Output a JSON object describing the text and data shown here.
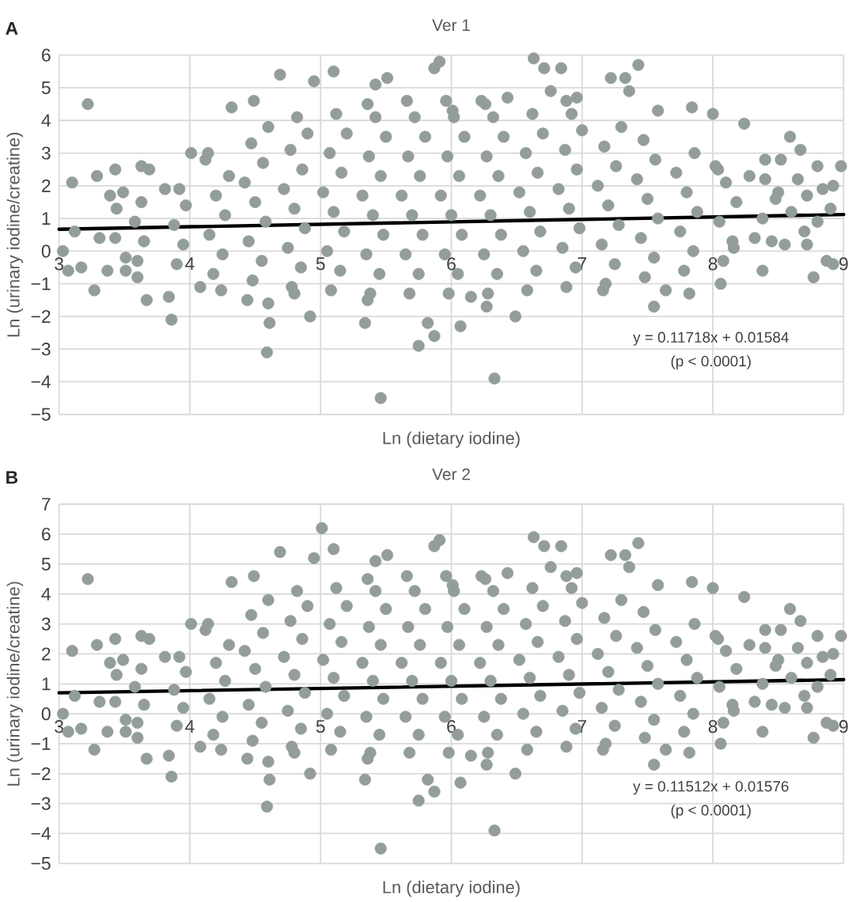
{
  "chart_data": [
    {
      "type": "scatter",
      "title": "Ver 1",
      "xlabel": "Ln (dietary iodine)",
      "ylabel": "Ln (urinary iodine/creatine)",
      "annotations": [
        "A",
        "y = 0.11718x + 0.01584",
        "(p < 0.0001)"
      ],
      "xlim": [
        3,
        9
      ],
      "ylim": [
        -5,
        6
      ],
      "xticks": [
        3,
        4,
        5,
        6,
        7,
        8,
        9
      ],
      "yticks": [
        {
          "value": -5,
          "label": "−5"
        },
        {
          "value": -4,
          "label": "−4"
        },
        {
          "value": -3,
          "label": "−3"
        },
        {
          "value": -2,
          "label": "−2"
        },
        {
          "value": -1,
          "label": "−1"
        },
        0,
        1,
        2,
        3,
        4,
        5,
        6
      ],
      "grid": true,
      "series": [
        {
          "marker": "circle",
          "color": "#939d9a",
          "x": [
            3.22,
            3.1,
            3.29,
            3.43,
            3.39,
            3.49,
            3.44,
            3.63,
            3.69,
            3.12,
            3.03,
            3.07,
            3.17,
            3.27,
            3.37,
            3.51,
            3.6,
            3.67,
            3.31,
            3.43,
            3.51,
            3.84,
            3.86,
            4.01,
            4.14,
            3.81,
            3.63,
            4.08,
            4.24,
            4.32,
            4.49,
            4.69,
            5.1,
            4.95,
            4.6,
            4.61,
            4.59,
            4.92,
            5.46,
            5.34,
            5.42,
            5.51,
            5.36,
            4.8,
            4.44,
            5.91,
            5.87,
            6.63,
            6.71,
            6.84,
            7.22,
            7.33,
            7.43,
            7.36,
            5.82,
            5.87,
            5.75,
            6.07,
            6.49,
            6.33,
            6.27,
            6.15,
            7.16,
            7.55,
            7.64,
            7.82,
            8.06,
            8.38,
            8.77,
            8.87,
            8.92,
            8.98,
            8.8,
            8.67,
            8.59,
            8.52,
            8.24,
            8.0,
            7.84,
            7.58,
            8.84,
            8.92,
            8.72,
            8.8,
            8.72,
            8.32,
            8.16,
            8.4,
            8.04,
            8.28,
            6.88,
            6.96,
            6.43,
            6.23,
            6.01,
            6.76,
            8.6,
            8.7,
            8.55,
            8.9,
            8.5,
            8.65,
            3.6,
            3.65,
            3.58,
            3.9,
            3.95,
            3.88,
            3.97,
            3.92,
            4.18,
            4.25,
            4.15,
            4.27,
            4.2,
            4.3,
            4.12,
            4.48,
            4.55,
            4.45,
            4.58,
            4.5,
            4.42,
            4.56,
            4.47,
            4.6,
            4.78,
            4.85,
            4.75,
            4.88,
            4.8,
            4.72,
            4.86,
            4.77,
            4.9,
            4.82,
            5.08,
            5.15,
            5.05,
            5.18,
            5.1,
            5.02,
            5.16,
            5.07,
            5.2,
            5.12,
            5.38,
            5.45,
            5.35,
            5.48,
            5.4,
            5.32,
            5.46,
            5.37,
            5.5,
            5.42,
            5.36,
            5.68,
            5.75,
            5.65,
            5.78,
            5.7,
            5.62,
            5.76,
            5.67,
            5.8,
            5.72,
            5.66,
            5.98,
            6.05,
            5.95,
            6.08,
            6.0,
            5.92,
            6.06,
            5.97,
            6.1,
            6.02,
            5.96,
            6.28,
            6.35,
            6.25,
            6.38,
            6.3,
            6.22,
            6.36,
            6.27,
            6.4,
            6.32,
            6.26,
            6.58,
            6.65,
            6.55,
            6.68,
            6.6,
            6.52,
            6.66,
            6.57,
            6.7,
            6.62,
            6.88,
            6.95,
            6.85,
            6.98,
            6.9,
            6.82,
            6.96,
            6.87,
            7.0,
            6.92,
            7.18,
            7.25,
            7.15,
            7.28,
            7.2,
            7.12,
            7.26,
            7.17,
            7.3,
            7.48,
            7.55,
            7.45,
            7.58,
            7.5,
            7.42,
            7.56,
            7.47,
            7.78,
            7.85,
            7.75,
            7.88,
            7.8,
            7.72,
            7.86,
            8.08,
            8.15,
            8.05,
            8.18,
            8.1,
            8.02,
            8.45,
            8.38,
            8.48,
            8.4
          ],
          "values": [
            4.5,
            2.1,
            2.3,
            2.5,
            1.7,
            1.8,
            1.3,
            2.6,
            2.5,
            0.6,
            0.0,
            -0.6,
            -0.5,
            -1.2,
            -0.6,
            -0.6,
            -0.8,
            -1.5,
            0.4,
            0.4,
            -0.2,
            -1.4,
            -2.1,
            3.0,
            3.0,
            1.9,
            1.5,
            -1.1,
            -1.2,
            4.4,
            4.6,
            5.4,
            5.5,
            5.2,
            -1.6,
            -2.2,
            -3.1,
            -2.0,
            -4.5,
            -2.2,
            5.1,
            5.3,
            -1.5,
            -1.3,
            -1.5,
            5.8,
            5.6,
            5.9,
            5.6,
            5.6,
            5.3,
            5.3,
            5.7,
            4.9,
            -2.2,
            -2.6,
            -2.9,
            -2.3,
            -2.0,
            -3.9,
            -1.7,
            -1.4,
            -1.2,
            -1.7,
            -1.2,
            -1.3,
            -1.0,
            -0.6,
            -0.8,
            -0.3,
            -0.4,
            2.6,
            2.6,
            3.1,
            3.5,
            2.8,
            3.9,
            4.2,
            4.4,
            4.3,
            1.9,
            2.0,
            1.7,
            0.9,
            0.2,
            0.4,
            0.1,
            2.8,
            2.5,
            2.3,
            4.6,
            4.7,
            4.7,
            4.6,
            4.3,
            4.9,
            1.2,
            0.6,
            0.2,
            1.3,
            1.8,
            2.2,
            -0.3,
            0.3,
            0.9,
            -0.4,
            0.2,
            0.8,
            1.4,
            1.9,
            -0.7,
            -0.1,
            0.5,
            1.1,
            1.7,
            2.3,
            2.8,
            -0.9,
            -0.3,
            0.3,
            0.9,
            1.5,
            2.1,
            2.7,
            3.3,
            3.8,
            -1.1,
            -0.5,
            0.1,
            0.7,
            1.3,
            1.9,
            2.5,
            3.1,
            3.6,
            4.1,
            -1.2,
            -0.6,
            0.0,
            0.6,
            1.2,
            1.8,
            2.4,
            3.0,
            3.6,
            4.2,
            -1.3,
            -0.7,
            -0.1,
            0.5,
            1.1,
            1.7,
            2.3,
            2.9,
            3.5,
            4.1,
            4.5,
            -1.3,
            -0.7,
            -0.1,
            0.5,
            1.1,
            1.7,
            2.3,
            2.9,
            3.5,
            4.1,
            4.6,
            -1.3,
            -0.7,
            -0.1,
            0.5,
            1.1,
            1.7,
            2.3,
            2.9,
            3.5,
            4.1,
            4.6,
            -1.3,
            -0.7,
            -0.1,
            0.5,
            1.1,
            1.7,
            2.3,
            2.9,
            3.5,
            4.1,
            4.5,
            -1.2,
            -0.6,
            0.0,
            0.6,
            1.2,
            1.8,
            2.4,
            3.0,
            3.6,
            4.2,
            -1.1,
            -0.5,
            0.1,
            0.7,
            1.3,
            1.9,
            2.5,
            3.1,
            3.7,
            4.2,
            -1.0,
            -0.4,
            0.2,
            0.8,
            1.4,
            2.0,
            2.6,
            3.2,
            3.8,
            -0.8,
            -0.2,
            0.4,
            1.0,
            1.6,
            2.2,
            2.8,
            3.4,
            -0.6,
            0.0,
            0.6,
            1.2,
            1.8,
            2.4,
            3.0,
            -0.3,
            0.3,
            0.9,
            1.5,
            2.1,
            2.6,
            0.3,
            1.0,
            1.6,
            2.2
          ]
        },
        {
          "type": "line",
          "marker": "none",
          "line_style": "solid",
          "color": "#000000",
          "x": [
            3,
            9
          ],
          "values": [
            0.67,
            1.12
          ]
        }
      ]
    },
    {
      "type": "scatter",
      "title": "Ver 2",
      "xlabel": "Ln (dietary iodine)",
      "ylabel": "Ln (urinary iodine/creatine)",
      "annotations": [
        "B",
        "y = 0.11512x + 0.01576",
        "(p < 0.0001)"
      ],
      "xlim": [
        3,
        9
      ],
      "ylim": [
        -5,
        7
      ],
      "xticks": [
        3,
        4,
        5,
        6,
        7,
        8,
        9
      ],
      "yticks": [
        {
          "value": -5,
          "label": "−5"
        },
        {
          "value": -4,
          "label": "−4"
        },
        {
          "value": -3,
          "label": "−3"
        },
        {
          "value": -2,
          "label": "−2"
        },
        {
          "value": -1,
          "label": "−1"
        },
        0,
        1,
        2,
        3,
        4,
        5,
        6,
        7
      ],
      "grid": true,
      "series": [
        {
          "marker": "circle",
          "color": "#939d9a",
          "x": [
            3.22,
            3.1,
            3.29,
            3.43,
            3.39,
            3.49,
            3.44,
            3.63,
            3.69,
            3.12,
            3.03,
            3.07,
            3.17,
            3.27,
            3.37,
            3.51,
            3.6,
            3.67,
            3.31,
            3.43,
            3.51,
            3.84,
            3.86,
            4.01,
            4.14,
            3.81,
            3.63,
            4.08,
            4.24,
            4.32,
            4.49,
            4.69,
            5.1,
            4.95,
            4.6,
            4.61,
            4.59,
            4.92,
            5.46,
            5.34,
            5.42,
            5.51,
            5.36,
            4.8,
            4.44,
            5.91,
            5.87,
            6.63,
            6.71,
            6.84,
            7.22,
            7.33,
            7.43,
            7.36,
            5.82,
            5.87,
            5.75,
            6.07,
            6.49,
            6.33,
            6.27,
            6.15,
            7.16,
            7.55,
            7.64,
            7.82,
            8.06,
            8.38,
            8.77,
            8.87,
            8.92,
            8.98,
            8.8,
            8.67,
            8.59,
            8.52,
            8.24,
            8.0,
            7.84,
            7.58,
            8.84,
            8.92,
            8.72,
            8.8,
            8.72,
            8.32,
            8.16,
            8.4,
            8.04,
            8.28,
            6.88,
            6.96,
            6.43,
            6.23,
            6.01,
            6.76,
            8.6,
            8.7,
            8.55,
            8.9,
            8.5,
            8.65,
            3.6,
            3.65,
            3.58,
            3.9,
            3.95,
            3.88,
            3.97,
            3.92,
            4.18,
            4.25,
            4.15,
            4.27,
            4.2,
            4.3,
            4.12,
            4.48,
            4.55,
            4.45,
            4.58,
            4.5,
            4.42,
            4.56,
            4.47,
            4.6,
            4.78,
            4.85,
            4.75,
            4.88,
            4.8,
            4.72,
            4.86,
            4.77,
            4.9,
            4.82,
            5.08,
            5.15,
            5.05,
            5.18,
            5.1,
            5.02,
            5.16,
            5.07,
            5.2,
            5.12,
            5.38,
            5.45,
            5.35,
            5.48,
            5.4,
            5.32,
            5.46,
            5.37,
            5.5,
            5.42,
            5.36,
            5.68,
            5.75,
            5.65,
            5.78,
            5.7,
            5.62,
            5.76,
            5.67,
            5.8,
            5.72,
            5.66,
            5.98,
            6.05,
            5.95,
            6.08,
            6.0,
            5.92,
            6.06,
            5.97,
            6.1,
            6.02,
            5.96,
            6.28,
            6.35,
            6.25,
            6.38,
            6.3,
            6.22,
            6.36,
            6.27,
            6.4,
            6.32,
            6.26,
            6.58,
            6.65,
            6.55,
            6.68,
            6.6,
            6.52,
            6.66,
            6.57,
            6.7,
            6.62,
            6.88,
            6.95,
            6.85,
            6.98,
            6.9,
            6.82,
            6.96,
            6.87,
            7.0,
            6.92,
            7.18,
            7.25,
            7.15,
            7.28,
            7.2,
            7.12,
            7.26,
            7.17,
            7.3,
            7.48,
            7.55,
            7.45,
            7.58,
            7.5,
            7.42,
            7.56,
            7.47,
            7.78,
            7.85,
            7.75,
            7.88,
            7.8,
            7.72,
            7.86,
            8.08,
            8.15,
            8.05,
            8.18,
            8.1,
            8.02,
            8.45,
            8.38,
            8.48,
            8.4,
            5.01
          ],
          "values": [
            4.5,
            2.1,
            2.3,
            2.5,
            1.7,
            1.8,
            1.3,
            2.6,
            2.5,
            0.6,
            0.0,
            -0.6,
            -0.5,
            -1.2,
            -0.6,
            -0.6,
            -0.8,
            -1.5,
            0.4,
            0.4,
            -0.2,
            -1.4,
            -2.1,
            3.0,
            3.0,
            1.9,
            1.5,
            -1.1,
            -1.2,
            4.4,
            4.6,
            5.4,
            5.5,
            5.2,
            -1.6,
            -2.2,
            -3.1,
            -2.0,
            -4.5,
            -2.2,
            5.1,
            5.3,
            -1.5,
            -1.3,
            -1.5,
            5.8,
            5.6,
            5.9,
            5.6,
            5.6,
            5.3,
            5.3,
            5.7,
            4.9,
            -2.2,
            -2.6,
            -2.9,
            -2.3,
            -2.0,
            -3.9,
            -1.7,
            -1.4,
            -1.2,
            -1.7,
            -1.2,
            -1.3,
            -1.0,
            -0.6,
            -0.8,
            -0.3,
            -0.4,
            2.6,
            2.6,
            3.1,
            3.5,
            2.8,
            3.9,
            4.2,
            4.4,
            4.3,
            1.9,
            2.0,
            1.7,
            0.9,
            0.2,
            0.4,
            0.1,
            2.8,
            2.5,
            2.3,
            4.6,
            4.7,
            4.7,
            4.6,
            4.3,
            4.9,
            1.2,
            0.6,
            0.2,
            1.3,
            1.8,
            2.2,
            -0.3,
            0.3,
            0.9,
            -0.4,
            0.2,
            0.8,
            1.4,
            1.9,
            -0.7,
            -0.1,
            0.5,
            1.1,
            1.7,
            2.3,
            2.8,
            -0.9,
            -0.3,
            0.3,
            0.9,
            1.5,
            2.1,
            2.7,
            3.3,
            3.8,
            -1.1,
            -0.5,
            0.1,
            0.7,
            1.3,
            1.9,
            2.5,
            3.1,
            3.6,
            4.1,
            -1.2,
            -0.6,
            0.0,
            0.6,
            1.2,
            1.8,
            2.4,
            3.0,
            3.6,
            4.2,
            -1.3,
            -0.7,
            -0.1,
            0.5,
            1.1,
            1.7,
            2.3,
            2.9,
            3.5,
            4.1,
            4.5,
            -1.3,
            -0.7,
            -0.1,
            0.5,
            1.1,
            1.7,
            2.3,
            2.9,
            3.5,
            4.1,
            4.6,
            -1.3,
            -0.7,
            -0.1,
            0.5,
            1.1,
            1.7,
            2.3,
            2.9,
            3.5,
            4.1,
            4.6,
            -1.3,
            -0.7,
            -0.1,
            0.5,
            1.1,
            1.7,
            2.3,
            2.9,
            3.5,
            4.1,
            4.5,
            -1.2,
            -0.6,
            0.0,
            0.6,
            1.2,
            1.8,
            2.4,
            3.0,
            3.6,
            4.2,
            -1.1,
            -0.5,
            0.1,
            0.7,
            1.3,
            1.9,
            2.5,
            3.1,
            3.7,
            4.2,
            -1.0,
            -0.4,
            0.2,
            0.8,
            1.4,
            2.0,
            2.6,
            3.2,
            3.8,
            -0.8,
            -0.2,
            0.4,
            1.0,
            1.6,
            2.2,
            2.8,
            3.4,
            -0.6,
            0.0,
            0.6,
            1.2,
            1.8,
            2.4,
            3.0,
            -0.3,
            0.3,
            0.9,
            1.5,
            2.1,
            2.6,
            0.3,
            1.0,
            1.6,
            2.2,
            6.2
          ]
        },
        {
          "type": "line",
          "marker": "none",
          "line_style": "solid",
          "color": "#000000",
          "x": [
            3,
            9
          ],
          "values": [
            0.7,
            1.14
          ]
        }
      ]
    }
  ]
}
